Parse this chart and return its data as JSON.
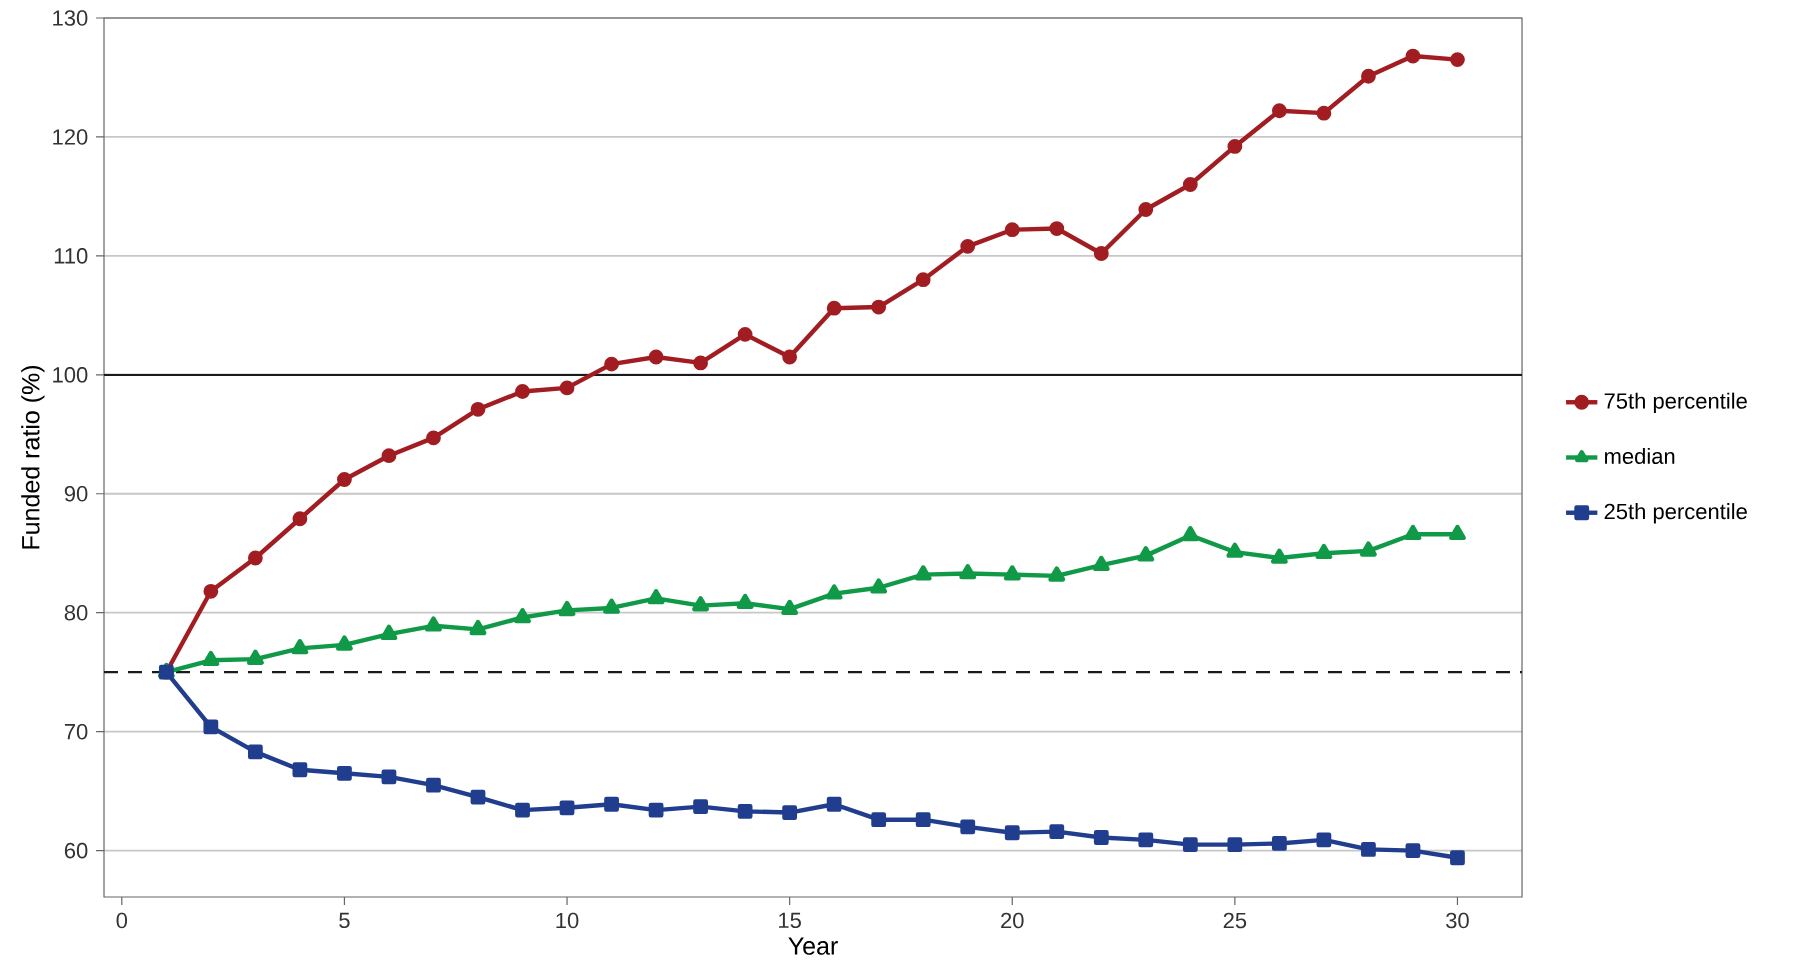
{
  "chart_data": {
    "type": "line",
    "xlabel": "Year",
    "ylabel": "Funded ratio (%)",
    "x": [
      1,
      2,
      3,
      4,
      5,
      6,
      7,
      8,
      9,
      10,
      11,
      12,
      13,
      14,
      15,
      16,
      17,
      18,
      19,
      20,
      21,
      22,
      23,
      24,
      25,
      26,
      27,
      28,
      29,
      30
    ],
    "series": [
      {
        "name": "75th percentile",
        "color": "#a11d21",
        "marker": "circle",
        "values": [
          75,
          81.8,
          84.6,
          87.9,
          91.2,
          93.2,
          94.7,
          97.1,
          98.6,
          98.9,
          100.9,
          101.5,
          101.0,
          103.4,
          101.5,
          105.6,
          105.7,
          108.0,
          110.8,
          112.2,
          112.3,
          110.2,
          113.9,
          116.0,
          119.2,
          122.2,
          122.0,
          125.1,
          126.8,
          126.5
        ]
      },
      {
        "name": "median",
        "color": "#109a48",
        "marker": "triangle",
        "values": [
          75,
          76.0,
          76.1,
          77.0,
          77.3,
          78.2,
          78.9,
          78.6,
          79.6,
          80.2,
          80.4,
          81.2,
          80.6,
          80.8,
          80.3,
          81.6,
          82.1,
          83.2,
          83.3,
          83.2,
          83.1,
          84.0,
          84.8,
          86.5,
          85.1,
          84.6,
          85.0,
          85.2,
          86.6,
          86.6
        ]
      },
      {
        "name": "25th percentile",
        "color": "#213d8e",
        "marker": "square",
        "values": [
          75,
          70.4,
          68.3,
          66.8,
          66.5,
          66.2,
          65.5,
          64.5,
          63.4,
          63.6,
          63.9,
          63.4,
          63.7,
          63.3,
          63.2,
          63.9,
          62.6,
          62.6,
          62.0,
          61.5,
          61.6,
          61.1,
          60.9,
          60.5,
          60.5,
          60.6,
          60.9,
          60.1,
          60.0,
          59.4
        ]
      }
    ],
    "xlim": [
      -0.4,
      31.45
    ],
    "ylim": [
      56.1,
      130
    ],
    "xticks": [
      0,
      5,
      10,
      15,
      20,
      25,
      30
    ],
    "yticks": [
      60,
      70,
      80,
      90,
      100,
      110,
      120,
      130
    ],
    "ref_lines": [
      {
        "axis": "y",
        "value": 100,
        "color": "#1a1a1a",
        "line_style": "solid"
      },
      {
        "axis": "y",
        "value": 75,
        "color": "#1a1a1a",
        "line_style": "dashed"
      }
    ],
    "grid": "y",
    "legend": "right",
    "line_style": "solid"
  }
}
